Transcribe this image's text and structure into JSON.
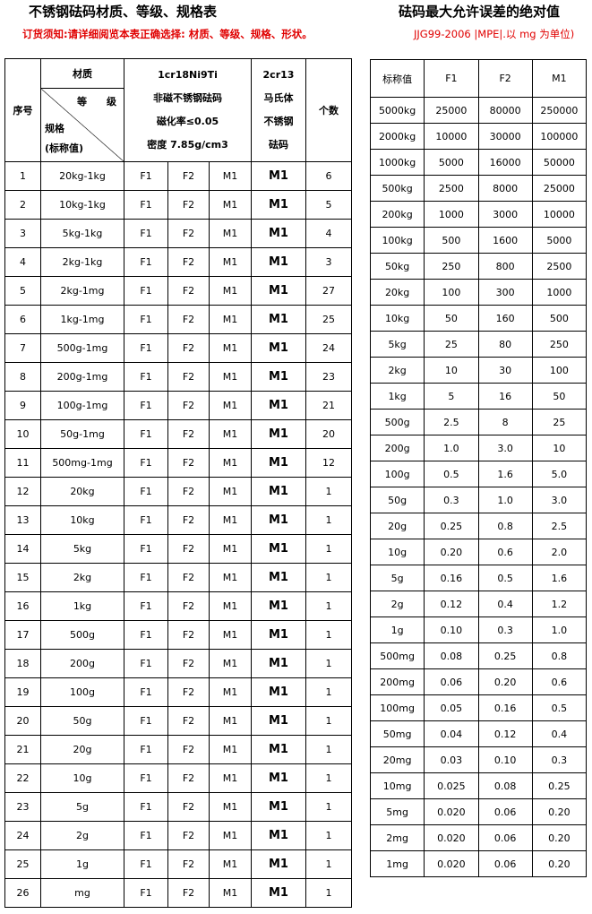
{
  "left_title": "不锈钢砝码材质、等级、规格表",
  "notice": "订货须知:请详细阅览本表正确选择: 材质、等级、规格、形状。",
  "right_title": "砝码最大允许误差的绝对值",
  "right_subtitle": "JJG99-2006 |MPE|.以 mg 为单位)",
  "left_header": {
    "seq": "序号",
    "material": "材质",
    "grade": "等　　级",
    "spec": "规格",
    "nominal": "(标称值)",
    "m1_line1": "1cr18Ni9Ti",
    "m1_line2": "非磁不锈钢砝码",
    "m1_line3": "磁化率≤0.05",
    "m1_line4": "密度 7.85g/cm3",
    "m2_line1": "2cr13",
    "m2_line2": "马氏体",
    "m2_line3": "不锈钢",
    "m2_line4": "砝码",
    "count": "个数"
  },
  "left_rows": [
    [
      "1",
      "20kg-1kg",
      "F1",
      "F2",
      "M1",
      "M1",
      "6"
    ],
    [
      "2",
      "10kg-1kg",
      "F1",
      "F2",
      "M1",
      "M1",
      "5"
    ],
    [
      "3",
      "5kg-1kg",
      "F1",
      "F2",
      "M1",
      "M1",
      "4"
    ],
    [
      "4",
      "2kg-1kg",
      "F1",
      "F2",
      "M1",
      "M1",
      "3"
    ],
    [
      "5",
      "2kg-1mg",
      "F1",
      "F2",
      "M1",
      "M1",
      "27"
    ],
    [
      "6",
      "1kg-1mg",
      "F1",
      "F2",
      "M1",
      "M1",
      "25"
    ],
    [
      "7",
      "500g-1mg",
      "F1",
      "F2",
      "M1",
      "M1",
      "24"
    ],
    [
      "8",
      "200g-1mg",
      "F1",
      "F2",
      "M1",
      "M1",
      "23"
    ],
    [
      "9",
      "100g-1mg",
      "F1",
      "F2",
      "M1",
      "M1",
      "21"
    ],
    [
      "10",
      "50g-1mg",
      "F1",
      "F2",
      "M1",
      "M1",
      "20"
    ],
    [
      "11",
      "500mg-1mg",
      "F1",
      "F2",
      "M1",
      "M1",
      "12"
    ],
    [
      "12",
      "20kg",
      "F1",
      "F2",
      "M1",
      "M1",
      "1"
    ],
    [
      "13",
      "10kg",
      "F1",
      "F2",
      "M1",
      "M1",
      "1"
    ],
    [
      "14",
      "5kg",
      "F1",
      "F2",
      "M1",
      "M1",
      "1"
    ],
    [
      "15",
      "2kg",
      "F1",
      "F2",
      "M1",
      "M1",
      "1"
    ],
    [
      "16",
      "1kg",
      "F1",
      "F2",
      "M1",
      "M1",
      "1"
    ],
    [
      "17",
      "500g",
      "F1",
      "F2",
      "M1",
      "M1",
      "1"
    ],
    [
      "18",
      "200g",
      "F1",
      "F2",
      "M1",
      "M1",
      "1"
    ],
    [
      "19",
      "100g",
      "F1",
      "F2",
      "M1",
      "M1",
      "1"
    ],
    [
      "20",
      "50g",
      "F1",
      "F2",
      "M1",
      "M1",
      "1"
    ],
    [
      "21",
      "20g",
      "F1",
      "F2",
      "M1",
      "M1",
      "1"
    ],
    [
      "22",
      "10g",
      "F1",
      "F2",
      "M1",
      "M1",
      "1"
    ],
    [
      "23",
      "5g",
      "F1",
      "F2",
      "M1",
      "M1",
      "1"
    ],
    [
      "24",
      "2g",
      "F1",
      "F2",
      "M1",
      "M1",
      "1"
    ],
    [
      "25",
      "1g",
      "F1",
      "F2",
      "M1",
      "M1",
      "1"
    ],
    [
      "26",
      "mg",
      "F1",
      "F2",
      "M1",
      "M1",
      "1"
    ]
  ],
  "right_header": [
    "标称值",
    "F1",
    "F2",
    "M1"
  ],
  "right_rows": [
    [
      "5000kg",
      "25000",
      "80000",
      "250000"
    ],
    [
      "2000kg",
      "10000",
      "30000",
      "100000"
    ],
    [
      "1000kg",
      "5000",
      "16000",
      "50000"
    ],
    [
      "500kg",
      "2500",
      "8000",
      "25000"
    ],
    [
      "200kg",
      "1000",
      "3000",
      "10000"
    ],
    [
      "100kg",
      "500",
      "1600",
      "5000"
    ],
    [
      "50kg",
      "250",
      "800",
      "2500"
    ],
    [
      "20kg",
      "100",
      "300",
      "1000"
    ],
    [
      "10kg",
      "50",
      "160",
      "500"
    ],
    [
      "5kg",
      "25",
      "80",
      "250"
    ],
    [
      "2kg",
      "10",
      "30",
      "100"
    ],
    [
      "1kg",
      "5",
      "16",
      "50"
    ],
    [
      "500g",
      "2.5",
      "8",
      "25"
    ],
    [
      "200g",
      "1.0",
      "3.0",
      "10"
    ],
    [
      "100g",
      "0.5",
      "1.6",
      "5.0"
    ],
    [
      "50g",
      "0.3",
      "1.0",
      "3.0"
    ],
    [
      "20g",
      "0.25",
      "0.8",
      "2.5"
    ],
    [
      "10g",
      "0.20",
      "0.6",
      "2.0"
    ],
    [
      "5g",
      "0.16",
      "0.5",
      "1.6"
    ],
    [
      "2g",
      "0.12",
      "0.4",
      "1.2"
    ],
    [
      "1g",
      "0.10",
      "0.3",
      "1.0"
    ],
    [
      "500mg",
      "0.08",
      "0.25",
      "0.8"
    ],
    [
      "200mg",
      "0.06",
      "0.20",
      "0.6"
    ],
    [
      "100mg",
      "0.05",
      "0.16",
      "0.5"
    ],
    [
      "50mg",
      "0.04",
      "0.12",
      "0.4"
    ],
    [
      "20mg",
      "0.03",
      "0.10",
      "0.3"
    ],
    [
      "10mg",
      "0.025",
      "0.08",
      "0.25"
    ],
    [
      "5mg",
      "0.020",
      "0.06",
      "0.20"
    ],
    [
      "2mg",
      "0.020",
      "0.06",
      "0.20"
    ],
    [
      "1mg",
      "0.020",
      "0.06",
      "0.20"
    ]
  ]
}
